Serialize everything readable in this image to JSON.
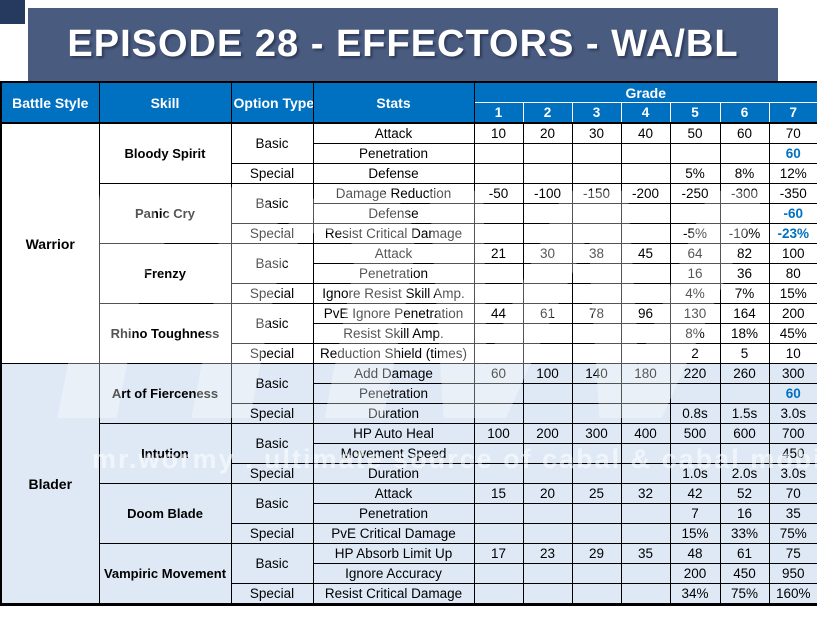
{
  "page": {
    "title_banner": "EPISODE 28 - EFFECTORS - WA/BL"
  },
  "watermark": {
    "logo": "mw",
    "text": "mr.wormy . ultimate source of cabal & cabal mobile"
  },
  "colors": {
    "header_blue": "#0070C0",
    "banner_blue": "#4A5B80",
    "corner_navy": "#26395F",
    "blader_row_bg": "#DEE9F5",
    "highlight_value_blue": "#0070C0"
  },
  "table": {
    "headers": {
      "battle_style": "Battle Style",
      "skill": "Skill",
      "option_type": "Option Type",
      "stats": "Stats",
      "grade": "Grade",
      "grade_levels": [
        "1",
        "2",
        "3",
        "4",
        "5",
        "6",
        "7"
      ]
    },
    "battle_styles": [
      {
        "name": "Warrior",
        "skills": [
          {
            "name": "Bloody Spirit",
            "options": [
              {
                "type": "Basic",
                "stats": [
                  {
                    "name": "Attack",
                    "values": [
                      "10",
                      "20",
                      "30",
                      "40",
                      "50",
                      "60",
                      "70"
                    ]
                  },
                  {
                    "name": "Penetration",
                    "values": [
                      "",
                      "",
                      "",
                      "",
                      "",
                      "",
                      "60"
                    ],
                    "blue": [
                      6
                    ]
                  }
                ]
              },
              {
                "type": "Special",
                "stats": [
                  {
                    "name": "Defense",
                    "values": [
                      "",
                      "",
                      "",
                      "",
                      "5%",
                      "8%",
                      "12%"
                    ]
                  }
                ]
              }
            ]
          },
          {
            "name": "Panic Cry",
            "options": [
              {
                "type": "Basic",
                "stats": [
                  {
                    "name": "Damage Reduction",
                    "values": [
                      "-50",
                      "-100",
                      "-150",
                      "-200",
                      "-250",
                      "-300",
                      "-350"
                    ]
                  },
                  {
                    "name": "Defense",
                    "values": [
                      "",
                      "",
                      "",
                      "",
                      "",
                      "",
                      "-60"
                    ],
                    "blue": [
                      6
                    ]
                  }
                ]
              },
              {
                "type": "Special",
                "stats": [
                  {
                    "name": "Resist Critical Damage",
                    "values": [
                      "",
                      "",
                      "",
                      "",
                      "-5%",
                      "-10%",
                      "-23%"
                    ],
                    "blue": [
                      6
                    ]
                  }
                ]
              }
            ]
          },
          {
            "name": "Frenzy",
            "options": [
              {
                "type": "Basic",
                "stats": [
                  {
                    "name": "Attack",
                    "values": [
                      "21",
                      "30",
                      "38",
                      "45",
                      "64",
                      "82",
                      "100"
                    ]
                  },
                  {
                    "name": "Penetration",
                    "values": [
                      "",
                      "",
                      "",
                      "",
                      "16",
                      "36",
                      "80"
                    ]
                  }
                ]
              },
              {
                "type": "Special",
                "stats": [
                  {
                    "name": "Ignore Resist Skill Amp.",
                    "values": [
                      "",
                      "",
                      "",
                      "",
                      "4%",
                      "7%",
                      "15%"
                    ]
                  }
                ]
              }
            ]
          },
          {
            "name": "Rhino Toughness",
            "options": [
              {
                "type": "Basic",
                "stats": [
                  {
                    "name": "PvE Ignore Penetration",
                    "values": [
                      "44",
                      "61",
                      "78",
                      "96",
                      "130",
                      "164",
                      "200"
                    ]
                  },
                  {
                    "name": "Resist Skill Amp.",
                    "values": [
                      "",
                      "",
                      "",
                      "",
                      "8%",
                      "18%",
                      "45%"
                    ]
                  }
                ]
              },
              {
                "type": "Special",
                "stats": [
                  {
                    "name": "Reduction Shield (times)",
                    "values": [
                      "",
                      "",
                      "",
                      "",
                      "2",
                      "5",
                      "10"
                    ]
                  }
                ]
              }
            ]
          }
        ]
      },
      {
        "name": "Blader",
        "skills": [
          {
            "name": "Art of Fierceness",
            "options": [
              {
                "type": "Basic",
                "stats": [
                  {
                    "name": "Add Damage",
                    "values": [
                      "60",
                      "100",
                      "140",
                      "180",
                      "220",
                      "260",
                      "300"
                    ]
                  },
                  {
                    "name": "Penetration",
                    "values": [
                      "",
                      "",
                      "",
                      "",
                      "",
                      "",
                      "60"
                    ],
                    "blue": [
                      6
                    ]
                  }
                ]
              },
              {
                "type": "Special",
                "stats": [
                  {
                    "name": "Duration",
                    "values": [
                      "",
                      "",
                      "",
                      "",
                      "0.8s",
                      "1.5s",
                      "3.0s"
                    ]
                  }
                ]
              }
            ]
          },
          {
            "name": "Intution",
            "options": [
              {
                "type": "Basic",
                "stats": [
                  {
                    "name": "HP Auto Heal",
                    "values": [
                      "100",
                      "200",
                      "300",
                      "400",
                      "500",
                      "600",
                      "700"
                    ]
                  },
                  {
                    "name": "Movement Speed",
                    "values": [
                      "",
                      "",
                      "",
                      "",
                      "",
                      "",
                      "450"
                    ]
                  }
                ]
              },
              {
                "type": "Special",
                "stats": [
                  {
                    "name": "Duration",
                    "values": [
                      "",
                      "",
                      "",
                      "",
                      "1.0s",
                      "2.0s",
                      "3.0s"
                    ]
                  }
                ]
              }
            ]
          },
          {
            "name": "Doom Blade",
            "options": [
              {
                "type": "Basic",
                "stats": [
                  {
                    "name": "Attack",
                    "values": [
                      "15",
                      "20",
                      "25",
                      "32",
                      "42",
                      "52",
                      "70"
                    ]
                  },
                  {
                    "name": "Penetration",
                    "values": [
                      "",
                      "",
                      "",
                      "",
                      "7",
                      "16",
                      "35"
                    ]
                  }
                ]
              },
              {
                "type": "Special",
                "stats": [
                  {
                    "name": "PvE Critical Damage",
                    "values": [
                      "",
                      "",
                      "",
                      "",
                      "15%",
                      "33%",
                      "75%"
                    ]
                  }
                ]
              }
            ]
          },
          {
            "name": "Vampiric Movement",
            "options": [
              {
                "type": "Basic",
                "stats": [
                  {
                    "name": "HP Absorb Limit Up",
                    "values": [
                      "17",
                      "23",
                      "29",
                      "35",
                      "48",
                      "61",
                      "75"
                    ]
                  },
                  {
                    "name": "Ignore Accuracy",
                    "values": [
                      "",
                      "",
                      "",
                      "",
                      "200",
                      "450",
                      "950"
                    ]
                  }
                ]
              },
              {
                "type": "Special",
                "stats": [
                  {
                    "name": "Resist Critical Damage",
                    "values": [
                      "",
                      "",
                      "",
                      "",
                      "34%",
                      "75%",
                      "160%"
                    ]
                  }
                ]
              }
            ]
          }
        ]
      }
    ]
  }
}
